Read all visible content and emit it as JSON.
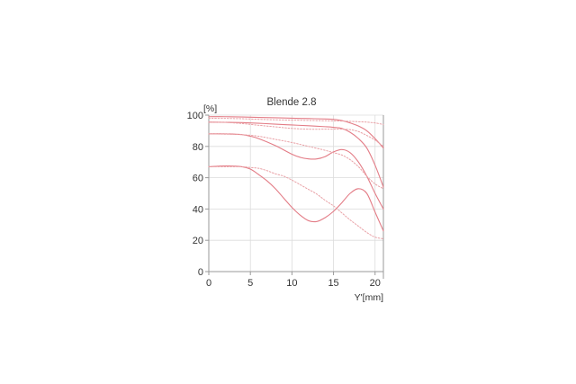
{
  "chart_data": {
    "type": "line",
    "title": "Blende 2.8",
    "xlabel": "Y'[mm]",
    "ylabel": "[%]",
    "xlim": [
      0,
      21
    ],
    "ylim": [
      0,
      100
    ],
    "xticks": [
      0,
      5,
      10,
      15,
      20
    ],
    "yticks": [
      0,
      20,
      40,
      60,
      80,
      100
    ],
    "xtick_labels": [
      "0",
      "5",
      "10",
      "15",
      "20"
    ],
    "ytick_labels": [
      "0",
      "20",
      "40",
      "60",
      "80",
      "100"
    ],
    "grid": true,
    "legend": "none",
    "colors": {
      "sagittal": "#e37c86",
      "tangential": "#e9a1a6",
      "grid": "#dcdcdc",
      "axis": "#999999",
      "text": "#333333"
    },
    "series": [
      {
        "style": "solid",
        "x": [
          0,
          2,
          4,
          6,
          8,
          10,
          12,
          14,
          15,
          16,
          17,
          18,
          19,
          20,
          21
        ],
        "y": [
          99,
          99,
          98.8,
          98.5,
          98.3,
          98,
          97.8,
          97.5,
          97.3,
          96.5,
          95,
          93,
          90,
          85,
          79
        ]
      },
      {
        "style": "dotted",
        "x": [
          0,
          2,
          4,
          6,
          8,
          10,
          12,
          14,
          16,
          17,
          18,
          19,
          20,
          21
        ],
        "y": [
          98,
          97.9,
          97.7,
          97.3,
          97,
          96.8,
          96.6,
          96.4,
          96.2,
          96,
          95.8,
          95.5,
          95,
          94
        ]
      },
      {
        "style": "solid",
        "x": [
          0,
          2,
          4,
          6,
          8,
          10,
          12,
          14,
          15,
          16,
          17,
          18,
          19,
          20,
          21
        ],
        "y": [
          95.5,
          95.4,
          95.2,
          94.8,
          94.2,
          93.7,
          93.2,
          92.6,
          92.2,
          91.5,
          89,
          85,
          79,
          68,
          54
        ]
      },
      {
        "style": "dotted",
        "x": [
          0,
          2,
          4,
          6,
          8,
          10,
          12,
          14,
          16,
          17,
          18,
          19,
          20,
          21
        ],
        "y": [
          95.5,
          95.3,
          94.6,
          93.5,
          92.5,
          91.5,
          91,
          91,
          91,
          90.7,
          89.5,
          87,
          84,
          80
        ]
      },
      {
        "style": "solid",
        "x": [
          0,
          2,
          4,
          5,
          6,
          8,
          10,
          11,
          12,
          13,
          14,
          15,
          16,
          17,
          18,
          19,
          20,
          21
        ],
        "y": [
          88,
          88,
          87.5,
          86.5,
          85,
          80.5,
          75,
          73,
          72,
          72,
          73.5,
          76.5,
          78,
          76,
          70,
          61,
          50,
          40
        ]
      },
      {
        "style": "dotted",
        "x": [
          0,
          2,
          4,
          6,
          8,
          10,
          12,
          14,
          15,
          16,
          17,
          18,
          19,
          20,
          21
        ],
        "y": [
          88,
          87.8,
          87.5,
          86.5,
          84.5,
          82.5,
          80,
          77.5,
          76,
          74.5,
          71.5,
          67,
          61,
          56,
          53
        ]
      },
      {
        "style": "solid",
        "x": [
          0,
          2,
          4,
          5,
          6,
          7,
          8,
          9,
          10,
          11,
          12,
          13,
          14,
          15,
          16,
          17,
          18,
          19,
          20,
          21
        ],
        "y": [
          67,
          67.5,
          67,
          65.5,
          62,
          58,
          53,
          47,
          41,
          36,
          32.5,
          32,
          34.5,
          38.5,
          44,
          50,
          53,
          50,
          38,
          26
        ]
      },
      {
        "style": "dotted",
        "x": [
          0,
          2,
          4,
          5,
          6,
          7,
          8,
          9,
          10,
          11,
          12,
          13,
          14,
          15,
          16,
          17,
          18,
          19,
          20,
          21
        ],
        "y": [
          67,
          67,
          67,
          66.5,
          66,
          64.5,
          62.5,
          61,
          58.5,
          55.5,
          52.5,
          49.5,
          45.5,
          42,
          37.5,
          33,
          29,
          25,
          22,
          21
        ]
      }
    ]
  }
}
